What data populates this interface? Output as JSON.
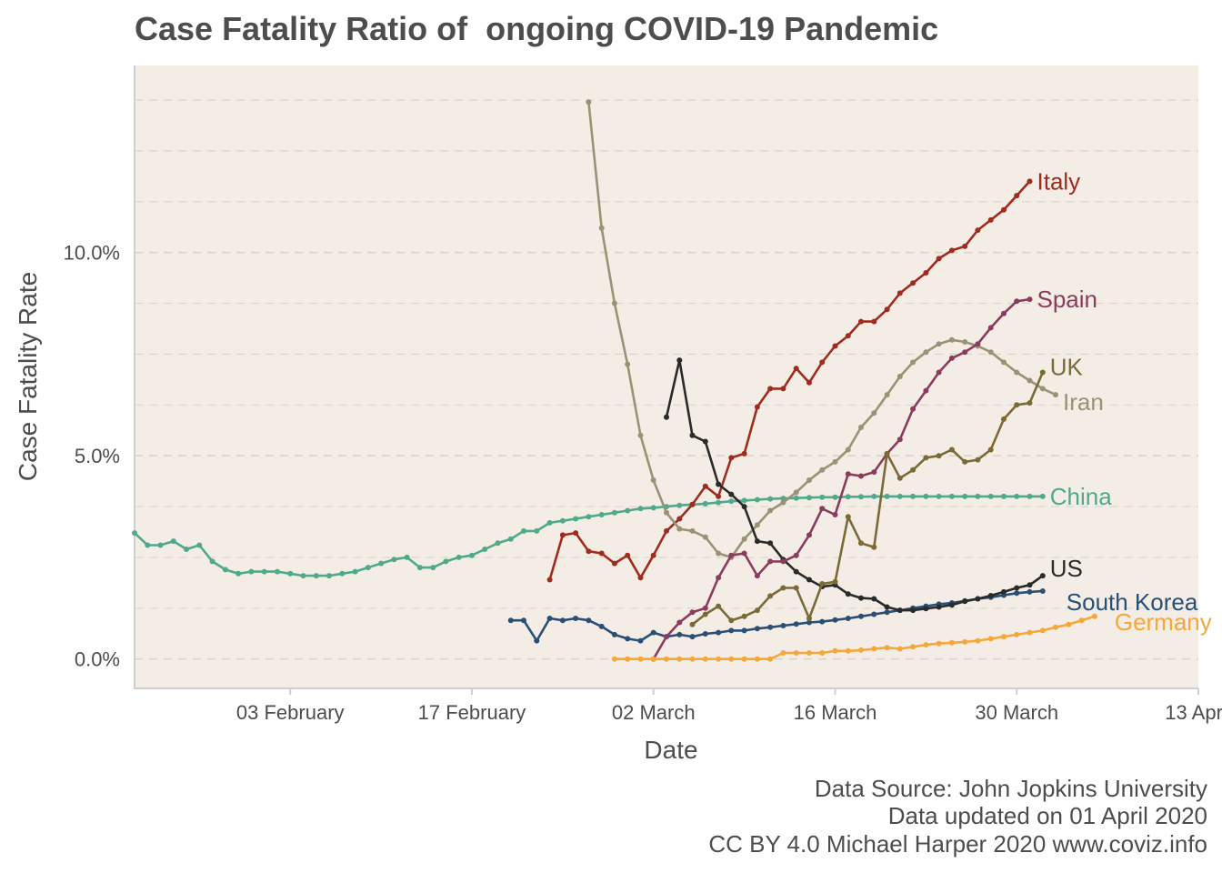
{
  "chart_data": {
    "type": "line",
    "title": "Case Fatality Ratio of  ongoing COVID-19 Pandemic",
    "xlabel": "Date",
    "ylabel": "Case Fatality Rate",
    "x_ticks": [
      "2020-02-03",
      "2020-02-17",
      "2020-03-02",
      "2020-03-16",
      "2020-03-30",
      "2020-04-13"
    ],
    "x_tick_labels": [
      "03 February",
      "17 February",
      "02 March",
      "16 March",
      "30 March",
      "13 April"
    ],
    "y_ticks": [
      0,
      5,
      10
    ],
    "y_tick_labels": [
      "0.0%",
      "5.0%",
      "10.0%"
    ],
    "xlim": [
      "2020-01-22",
      "2020-04-13"
    ],
    "ylim": [
      -0.7,
      14.6
    ],
    "grid": true,
    "legend": "direct labels at line ends",
    "colors": {
      "panel_background": "#f3ede6",
      "grid": "#d9d4ce"
    },
    "series": [
      {
        "name": "China",
        "color": "#4fa98a",
        "start": "2020-01-22",
        "values": [
          3.1,
          2.8,
          2.8,
          2.9,
          2.7,
          2.8,
          2.4,
          2.2,
          2.1,
          2.15,
          2.15,
          2.15,
          2.1,
          2.05,
          2.05,
          2.05,
          2.1,
          2.15,
          2.25,
          2.35,
          2.45,
          2.5,
          2.25,
          2.25,
          2.4,
          2.5,
          2.55,
          2.7,
          2.85,
          2.95,
          3.15,
          3.15,
          3.35,
          3.4,
          3.45,
          3.5,
          3.55,
          3.6,
          3.65,
          3.7,
          3.72,
          3.75,
          3.78,
          3.8,
          3.82,
          3.85,
          3.88,
          3.9,
          3.92,
          3.94,
          3.95,
          3.96,
          3.97,
          3.98,
          3.98,
          3.99,
          3.99,
          4.0,
          4.0,
          4.0,
          4.0,
          4.0,
          4.0,
          4.0,
          4.0,
          4.0,
          4.0,
          4.0,
          4.0,
          4.0,
          4.0
        ]
      },
      {
        "name": "South Korea",
        "color": "#2a4f75",
        "start": "2020-02-20",
        "values": [
          0.95,
          0.95,
          0.45,
          1.0,
          0.95,
          1.0,
          0.95,
          0.8,
          0.6,
          0.5,
          0.45,
          0.65,
          0.55,
          0.6,
          0.55,
          0.62,
          0.65,
          0.7,
          0.7,
          0.75,
          0.78,
          0.82,
          0.86,
          0.9,
          0.92,
          0.96,
          1.0,
          1.05,
          1.1,
          1.15,
          1.2,
          1.25,
          1.3,
          1.35,
          1.38,
          1.43,
          1.48,
          1.52,
          1.57,
          1.62,
          1.65,
          1.67
        ]
      },
      {
        "name": "Italy",
        "color": "#a02b1f",
        "start": "2020-02-23",
        "values": [
          1.95,
          3.05,
          3.1,
          2.65,
          2.6,
          2.35,
          2.55,
          2.0,
          2.55,
          3.15,
          3.45,
          3.8,
          4.25,
          4.0,
          4.95,
          5.05,
          6.2,
          6.65,
          6.65,
          7.15,
          6.8,
          7.3,
          7.7,
          7.95,
          8.3,
          8.3,
          8.6,
          9.0,
          9.25,
          9.5,
          9.85,
          10.05,
          10.15,
          10.55,
          10.8,
          11.05,
          11.4,
          11.75
        ]
      },
      {
        "name": "Iran",
        "color": "#9a9275",
        "start": "2020-02-26",
        "values": [
          13.7,
          10.6,
          8.75,
          7.25,
          5.5,
          4.4,
          3.6,
          3.2,
          3.15,
          3.0,
          2.6,
          2.5,
          2.95,
          3.3,
          3.65,
          3.85,
          4.1,
          4.4,
          4.65,
          4.85,
          5.15,
          5.7,
          6.05,
          6.5,
          6.95,
          7.3,
          7.55,
          7.75,
          7.85,
          7.8,
          7.7,
          7.55,
          7.3,
          7.05,
          6.85,
          6.65,
          6.5
        ]
      },
      {
        "name": "US",
        "color": "#2a2a2a",
        "start": "2020-03-03",
        "values": [
          5.95,
          7.35,
          5.5,
          5.35,
          4.3,
          4.05,
          3.75,
          2.9,
          2.85,
          2.45,
          2.15,
          1.95,
          1.78,
          1.82,
          1.6,
          1.5,
          1.48,
          1.28,
          1.2,
          1.2,
          1.24,
          1.28,
          1.33,
          1.42,
          1.48,
          1.56,
          1.65,
          1.75,
          1.82,
          2.05
        ]
      },
      {
        "name": "Spain",
        "color": "#8b3c5d",
        "start": "2020-03-02",
        "values": [
          0.0,
          0.55,
          0.9,
          1.15,
          1.25,
          2.0,
          2.55,
          2.6,
          2.05,
          2.4,
          2.4,
          2.55,
          3.05,
          3.7,
          3.55,
          4.55,
          4.5,
          4.6,
          5.05,
          5.4,
          6.15,
          6.6,
          7.05,
          7.4,
          7.55,
          7.75,
          8.15,
          8.5,
          8.8,
          8.85
        ]
      },
      {
        "name": "UK",
        "color": "#7a6a36",
        "start": "2020-03-05",
        "values": [
          0.85,
          1.1,
          1.3,
          0.95,
          1.05,
          1.2,
          1.55,
          1.75,
          1.75,
          1.0,
          1.85,
          1.9,
          3.5,
          2.85,
          2.75,
          5.05,
          4.45,
          4.65,
          4.95,
          5.0,
          5.15,
          4.85,
          4.9,
          5.15,
          5.9,
          6.25,
          6.3,
          7.05
        ]
      },
      {
        "name": "Germany",
        "color": "#f5a73a",
        "start": "2020-02-28",
        "values": [
          0.0,
          0.0,
          0.0,
          0.0,
          0.0,
          0.0,
          0.0,
          0.0,
          0.0,
          0.0,
          0.0,
          0.0,
          0.0,
          0.15,
          0.15,
          0.15,
          0.15,
          0.2,
          0.2,
          0.22,
          0.25,
          0.28,
          0.25,
          0.3,
          0.35,
          0.38,
          0.4,
          0.42,
          0.45,
          0.5,
          0.55,
          0.6,
          0.65,
          0.7,
          0.78,
          0.85,
          0.95,
          1.05
        ]
      }
    ]
  },
  "caption": {
    "line1": "Data Source: John Jopkins University",
    "line2": "Data updated on 01 April 2020",
    "line3": "CC BY 4.0 Michael Harper 2020 www.coviz.info"
  }
}
